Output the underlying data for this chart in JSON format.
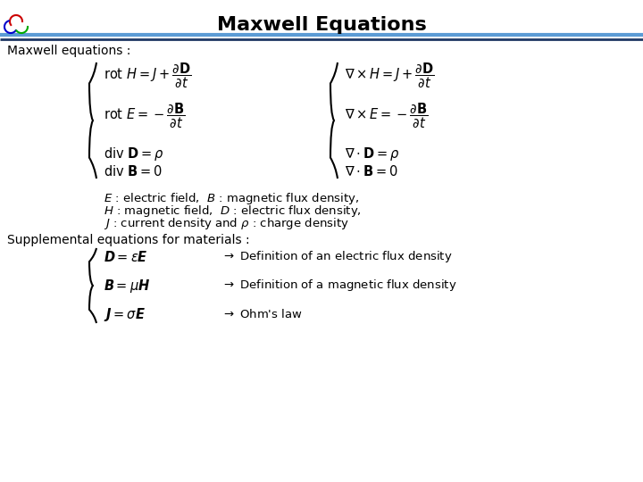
{
  "title": "Maxwell Equations",
  "title_fontsize": 16,
  "title_color": "#000000",
  "bg_color": "#ffffff",
  "subtitle": "Maxwell equations :",
  "legend_line1": "$E$ : electric field,  $B$ : magnetic flux density,",
  "legend_line2": "$H$ : magnetic field,  $D$ : electric flux density,",
  "legend_line3": "$J$ : current density and $\\rho$ : charge density",
  "supp_title": "Supplemental equations for materials :",
  "header_line_color_light": "#5b9bd5",
  "header_line_color_dark": "#1f3864"
}
